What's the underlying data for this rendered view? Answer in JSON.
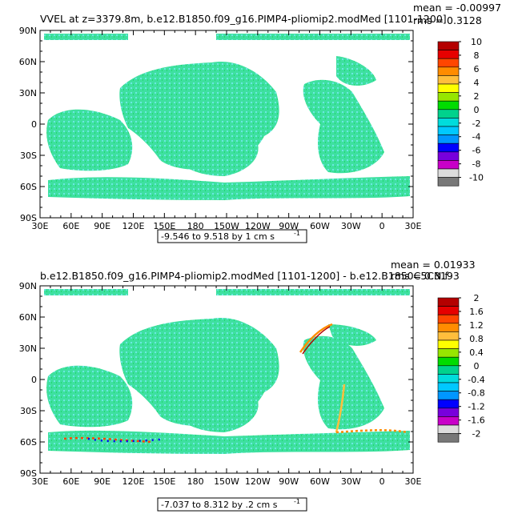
{
  "chart_data": [
    {
      "type": "heatmap",
      "title_left": "VVEL at z=3379.8m, b.e12.B1850.f09_g16.PIMP4-pliomip2.modMed [1101-1200]",
      "title_right_top": "mean = -0.00997",
      "title_right_bottom": "rms = 0.3128",
      "x_ticks": [
        "30E",
        "60E",
        "90E",
        "120E",
        "150E",
        "180",
        "150W",
        "120W",
        "90W",
        "60W",
        "30W",
        "0",
        "30E"
      ],
      "y_ticks": [
        "90N",
        "60N",
        "30N",
        "0",
        "30S",
        "60S",
        "90S"
      ],
      "range_label": "-9.546 to 9.518 by 1 cm s",
      "range_unit_exp": "-1",
      "colorbar_labels": [
        "10",
        "8",
        "6",
        "4",
        "2",
        "0",
        "-2",
        "-4",
        "-6",
        "-8",
        "-10"
      ],
      "stats": {
        "mean": -0.00997,
        "rms": 0.3128,
        "min": -9.546,
        "max": 9.518,
        "interval": 1
      }
    },
    {
      "type": "heatmap",
      "title_left": "b.e12.B1850.f09_g16.PIMP4-pliomip2.modMed [1101-1200] - b.e12.B1850C5CN.f",
      "title_right_top": "mean = 0.01933",
      "title_right_bottom": "rms = 0.3193",
      "x_ticks": [
        "30E",
        "60E",
        "90E",
        "120E",
        "150E",
        "180",
        "150W",
        "120W",
        "90W",
        "60W",
        "30W",
        "0",
        "30E"
      ],
      "y_ticks": [
        "90N",
        "60N",
        "30N",
        "0",
        "30S",
        "60S",
        "90S"
      ],
      "range_label": "-7.037 to 8.312 by .2 cm s",
      "range_unit_exp": "-1",
      "colorbar_labels": [
        "2",
        "1.6",
        "1.2",
        "0.8",
        "0.4",
        "0",
        "-0.4",
        "-0.8",
        "-1.2",
        "-1.6",
        "-2"
      ],
      "stats": {
        "mean": 0.01933,
        "rms": 0.3193,
        "min": -7.037,
        "max": 8.312,
        "interval": 0.2
      }
    }
  ],
  "colorbar_colors": [
    "#b40000",
    "#e60000",
    "#ff4600",
    "#ff8c00",
    "#ffbe3c",
    "#ffff00",
    "#96e600",
    "#00dc00",
    "#00d28c",
    "#00dcdc",
    "#00c8ff",
    "#0096ff",
    "#0000ff",
    "#7800dc",
    "#c800c8",
    "#dcdcdc",
    "#787878"
  ],
  "land_color": "#ffffff",
  "ocean_color": "#33dd99",
  "ocean_speckle_color": "#66e6e6"
}
